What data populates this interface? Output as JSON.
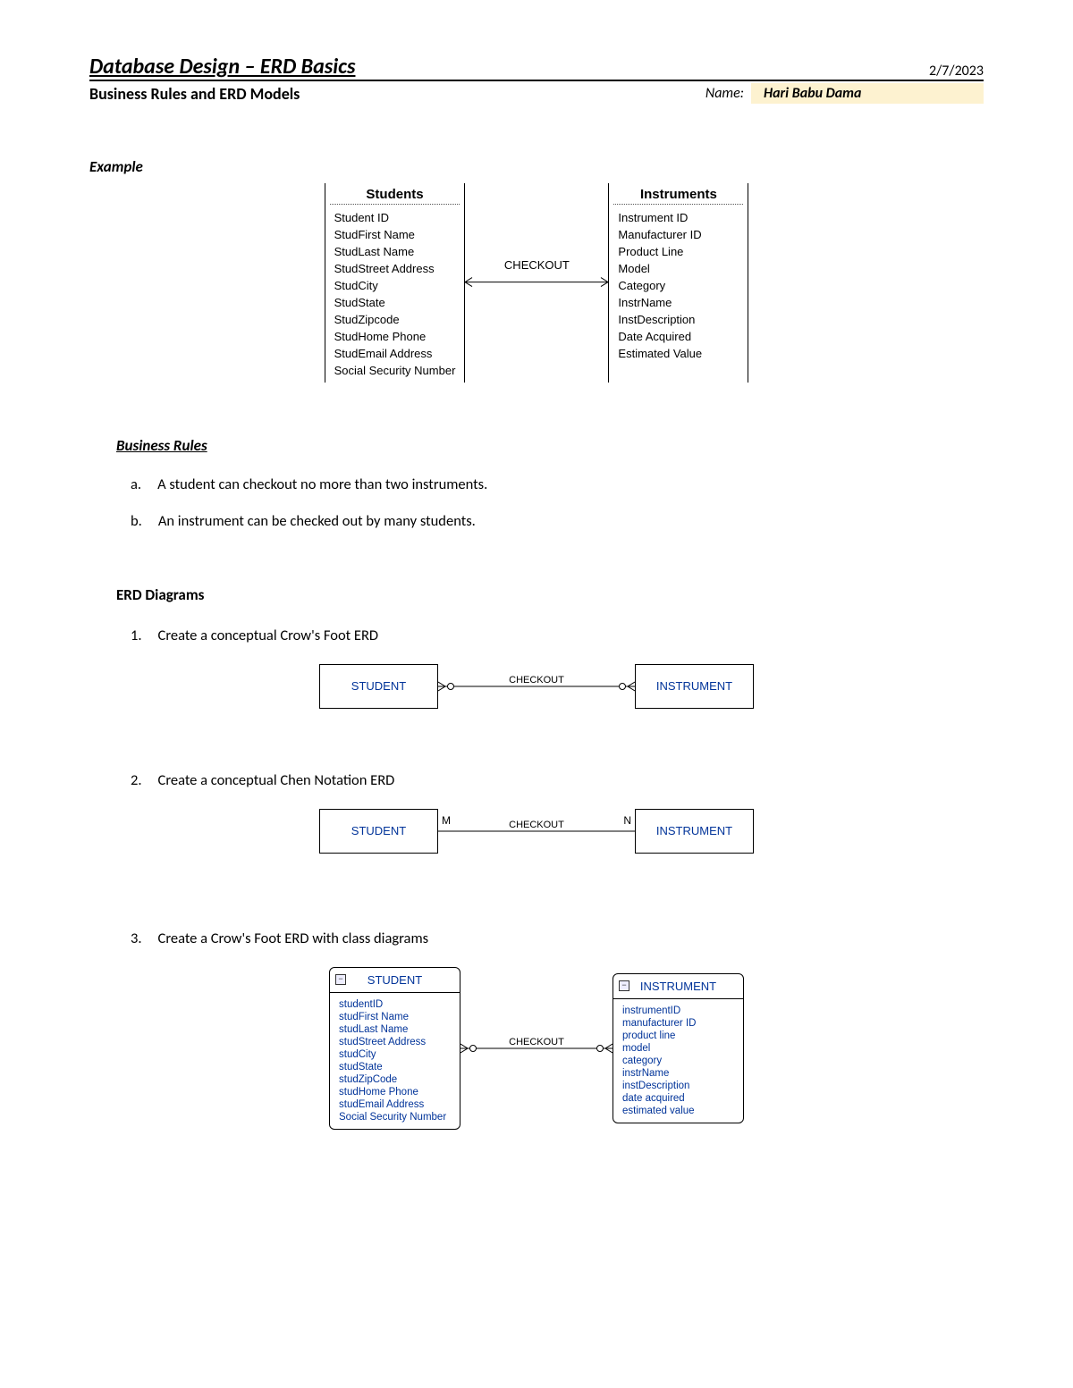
{
  "header": {
    "title": "Database Design – ERD Basics",
    "date": "2/7/2023",
    "subtitle": "Business Rules and ERD Models",
    "name_label": "Name:",
    "name_value": "Hari Babu Dama"
  },
  "example": {
    "label": "Example",
    "left_title": "Students",
    "left_attrs": [
      "Student ID",
      "StudFirst Name",
      "StudLast Name",
      "StudStreet Address",
      "StudCity",
      "StudState",
      "StudZipcode",
      "StudHome Phone",
      "StudEmail Address",
      "Social Security Number"
    ],
    "rel": "CHECKOUT",
    "right_title": "Instruments",
    "right_attrs": [
      "Instrument ID",
      "Manufacturer ID",
      "Product Line",
      "Model",
      "Category",
      "InstrName",
      "InstDescription",
      "Date Acquired",
      "Estimated Value"
    ]
  },
  "rules": {
    "heading": "Business Rules",
    "items": [
      {
        "letter": "a.",
        "text": "A student can checkout no more than two instruments."
      },
      {
        "letter": "b.",
        "text": "An instrument can be checked out by many students."
      }
    ]
  },
  "erd": {
    "heading": "ERD Diagrams",
    "q1": {
      "num": "1.",
      "text": "Create a conceptual Crow's Foot ERD",
      "left": "STUDENT",
      "rel": "CHECKOUT",
      "right": "INSTRUMENT"
    },
    "q2": {
      "num": "2.",
      "text": "Create a conceptual Chen Notation ERD",
      "left": "STUDENT",
      "rel": "CHECKOUT",
      "right": "INSTRUMENT",
      "m": "M",
      "n": "N"
    },
    "q3": {
      "num": "3.",
      "text": "Create a Crow's Foot ERD with class diagrams",
      "left": {
        "title": "STUDENT",
        "attrs": [
          "studentID",
          "studFirst Name",
          "studLast Name",
          "studStreet Address",
          "studCity",
          "studState",
          "studZipCode",
          "studHome Phone",
          "studEmail Address",
          "Social Security Number"
        ]
      },
      "rel": "CHECKOUT",
      "right": {
        "title": "INSTRUMENT",
        "attrs": [
          "instrumentID",
          "manufacturer ID",
          "product line",
          "model",
          "category",
          "instrName",
          "instDescription",
          "date acquired",
          "estimated value"
        ]
      }
    }
  }
}
